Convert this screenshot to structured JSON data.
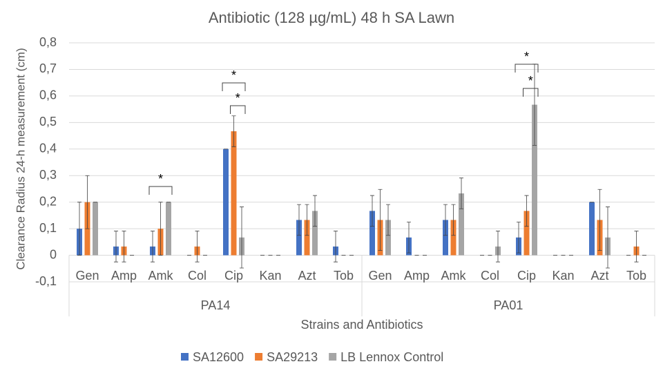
{
  "chart_data": {
    "type": "bar",
    "title": "Antibiotic (128 µg/mL) 48 h SA Lawn",
    "x_label": "Strains and Antibiotics",
    "y_label": "Clearance Radius 24-h measurement (cm)",
    "categories": [
      "Gen",
      "Amp",
      "Amk",
      "Col",
      "Cip",
      "Kan",
      "Azt",
      "Tob",
      "Gen",
      "Amp",
      "Amk",
      "Col",
      "Cip",
      "Kan",
      "Azt",
      "Tob"
    ],
    "groups": [
      "PA14",
      "PA01"
    ],
    "series": [
      {
        "name": "SA12600",
        "color": "#4472c4",
        "values": [
          0.1,
          0.033,
          0.033,
          0,
          0.4,
          0,
          0.133,
          0.033,
          0.167,
          0.067,
          0.133,
          0,
          0.067,
          0,
          0.2,
          0
        ],
        "errors": [
          0.1,
          0.058,
          0.058,
          0,
          0,
          0,
          0.058,
          0.058,
          0.058,
          0.058,
          0.058,
          0,
          0.058,
          0,
          0,
          0
        ]
      },
      {
        "name": "SA29213",
        "color": "#ed7d31",
        "values": [
          0.2,
          0.033,
          0.1,
          0.033,
          0.467,
          0,
          0.133,
          0,
          0.133,
          0,
          0.133,
          0,
          0.167,
          0,
          0.133,
          0.033
        ],
        "errors": [
          0.1,
          0.058,
          0.1,
          0.058,
          0.058,
          0,
          0.058,
          0,
          0.115,
          0,
          0.058,
          0,
          0.058,
          0,
          0.115,
          0.058
        ]
      },
      {
        "name": "LB Lennox Control",
        "color": "#a5a5a5",
        "values": [
          0.2,
          0,
          0.2,
          0,
          0.067,
          0,
          0.167,
          0,
          0.133,
          0,
          0.233,
          0.033,
          0.567,
          0,
          0.067,
          0
        ],
        "errors": [
          0,
          0,
          0,
          0,
          0.115,
          0,
          0.058,
          0,
          0.058,
          0,
          0.058,
          0.058,
          0.153,
          0,
          0.115,
          0
        ]
      }
    ],
    "significance": [
      "*",
      "*",
      "*",
      "*",
      "*"
    ],
    "ylim": [
      -0.1,
      0.8
    ],
    "yticks": [
      {
        "value": -0.1,
        "label": "-0,1"
      },
      0,
      {
        "value": 0.1,
        "label": "0,1"
      },
      {
        "value": 0.2,
        "label": "0,2"
      },
      {
        "value": 0.3,
        "label": "0,3"
      },
      {
        "value": 0.4,
        "label": "0,4"
      },
      {
        "value": 0.5,
        "label": "0,5"
      },
      {
        "value": 0.6,
        "label": "0,6"
      },
      {
        "value": 0.7,
        "label": "0,7"
      },
      {
        "value": 0.8,
        "label": "0,8"
      }
    ],
    "grid": true
  }
}
